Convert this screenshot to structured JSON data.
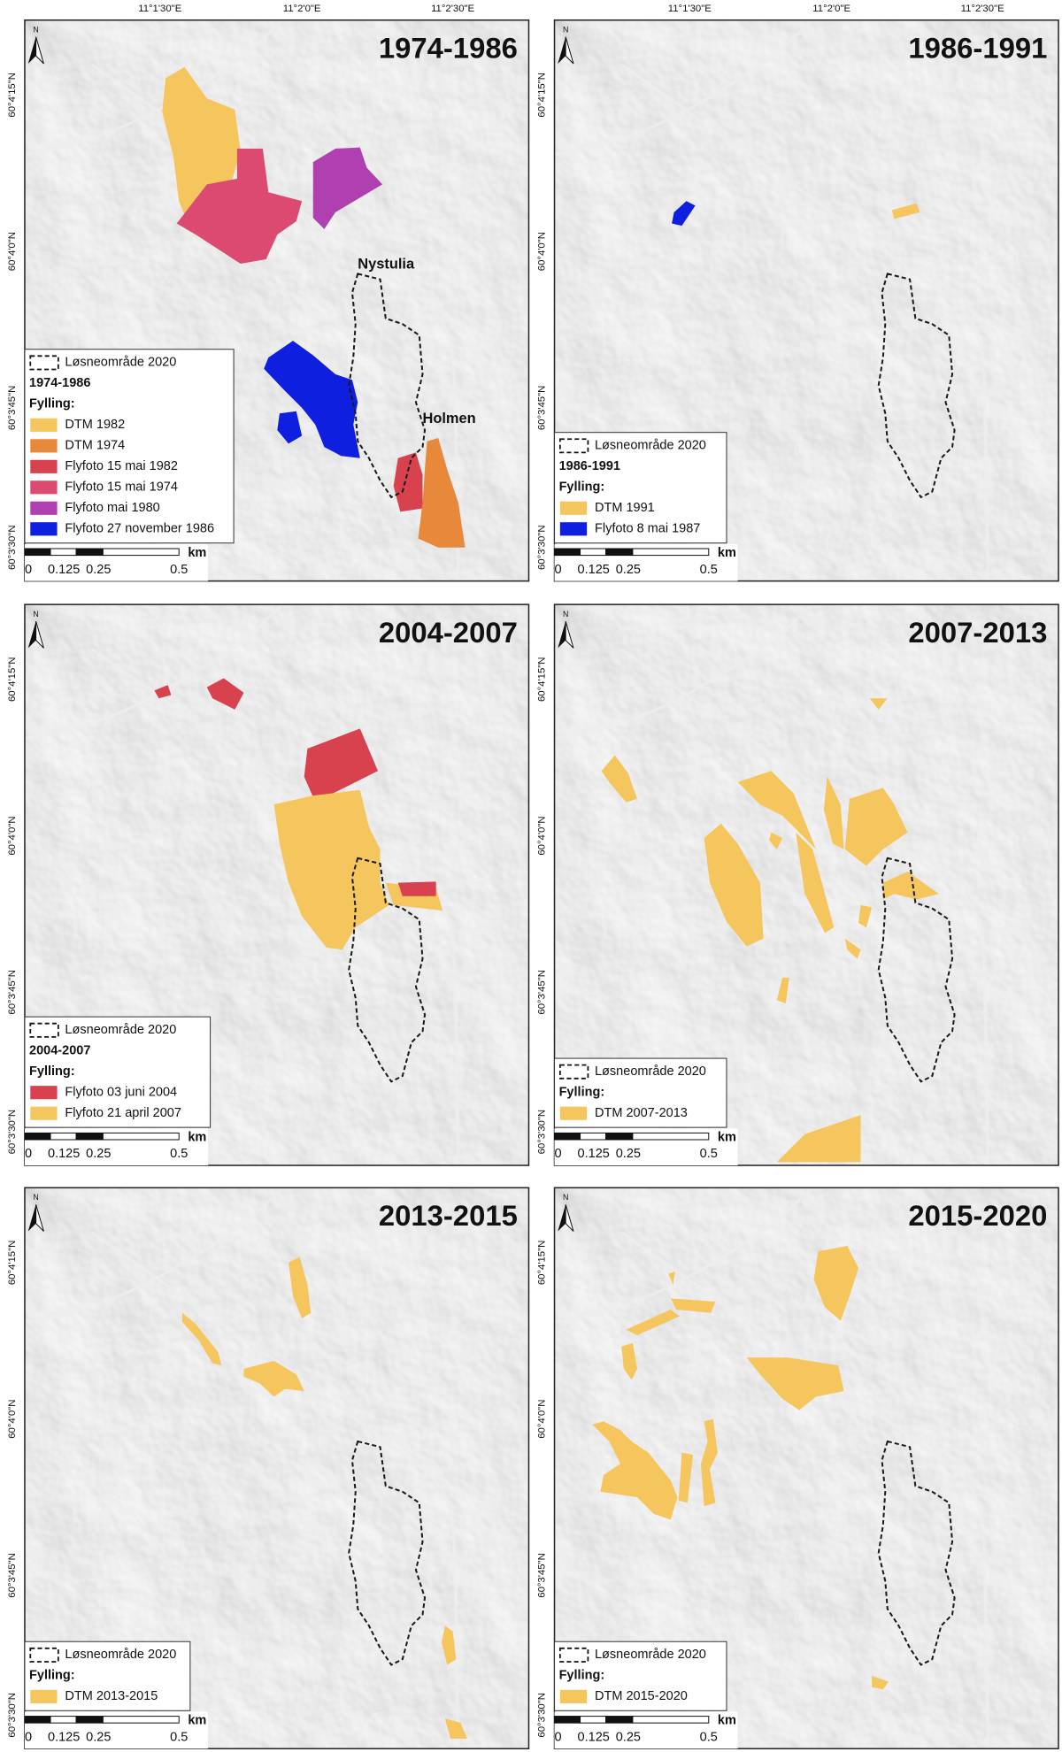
{
  "axes": {
    "top_labels": [
      "11°1'30\"E",
      "11°2'0\"E",
      "11°2'30\"E"
    ],
    "left_labels": [
      "60°4'15\"N",
      "60°4'0\"N",
      "60°3'45\"N",
      "60°3'30\"N"
    ]
  },
  "north": "N",
  "scale": {
    "unit": "km",
    "labels": [
      "0",
      "0.125",
      "0.25",
      "0.5"
    ]
  },
  "boundary_label": "Løsneområde 2020",
  "fill_heading": "Fylling:",
  "panels": [
    {
      "title": "1974-1986",
      "place_labels": [
        "Nystulia",
        "Holmen"
      ],
      "legend": {
        "subtitle": "1974-1986",
        "items": [
          {
            "label": "DTM 1982",
            "color": "#f5c65e"
          },
          {
            "label": "DTM 1974",
            "color": "#e8883a"
          },
          {
            "label": "Flyfoto 15 mai 1982",
            "color": "#d8424f"
          },
          {
            "label": "Flyfoto 15 mai 1974",
            "color": "#dc4a72"
          },
          {
            "label": "Flyfoto mai 1980",
            "color": "#b040b0"
          },
          {
            "label": "Flyfoto 27 november 1986",
            "color": "#0f1fe0"
          }
        ]
      }
    },
    {
      "title": "1986-1991",
      "legend": {
        "subtitle": "1986-1991",
        "items": [
          {
            "label": "DTM 1991",
            "color": "#f5c65e"
          },
          {
            "label": "Flyfoto 8 mai 1987",
            "color": "#0f1fe0"
          }
        ]
      }
    },
    {
      "title": "2004-2007",
      "legend": {
        "subtitle": "2004-2007",
        "items": [
          {
            "label": "Flyfoto 03 juni 2004",
            "color": "#d8424f"
          },
          {
            "label": "Flyfoto 21 april 2007",
            "color": "#f5c65e"
          }
        ]
      }
    },
    {
      "title": "2007-2013",
      "legend": {
        "items": [
          {
            "label": "DTM 2007-2013",
            "color": "#f5c65e"
          }
        ]
      }
    },
    {
      "title": "2013-2015",
      "legend": {
        "items": [
          {
            "label": "DTM 2013-2015",
            "color": "#f5c65e"
          }
        ]
      }
    },
    {
      "title": "2015-2020",
      "legend": {
        "items": [
          {
            "label": "DTM 2015-2020",
            "color": "#f5c65e"
          }
        ]
      }
    }
  ]
}
